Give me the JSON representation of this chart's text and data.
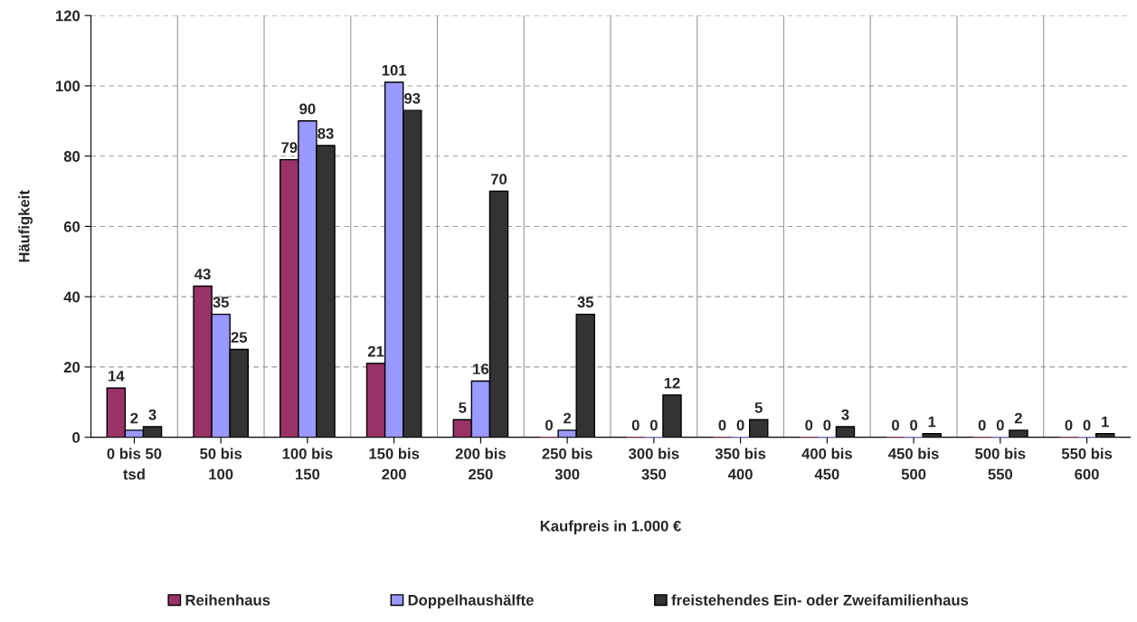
{
  "chart_data": {
    "type": "bar",
    "categories": [
      "0 bis 50\ntsd",
      "50 bis\n100",
      "100 bis\n150",
      "150 bis\n200",
      "200 bis\n250",
      "250 bis\n300",
      "300 bis\n350",
      "350 bis\n400",
      "400 bis\n450",
      "450 bis\n500",
      "500 bis\n550",
      "550 bis\n600"
    ],
    "series": [
      {
        "name": "Reihenhaus",
        "color": "#993366",
        "values": [
          14,
          43,
          79,
          21,
          5,
          0,
          0,
          0,
          0,
          0,
          0,
          0
        ]
      },
      {
        "name": "Doppelhaushälfte",
        "color": "#9999ff",
        "values": [
          2,
          35,
          90,
          101,
          16,
          2,
          0,
          0,
          0,
          0,
          0,
          0
        ]
      },
      {
        "name": "freistehendes Ein- oder Zweifamilienhaus",
        "color": "#333333",
        "values": [
          3,
          25,
          83,
          93,
          70,
          35,
          12,
          5,
          3,
          1,
          2,
          1
        ]
      }
    ],
    "xlabel": "Kaufpreis in 1.000 €",
    "ylabel": "Häufigkeit",
    "ylim": [
      0,
      120
    ],
    "yticks": [
      0,
      20,
      40,
      60,
      80,
      100,
      120
    ],
    "grid": true,
    "legend": "bottom",
    "data_labels": true
  }
}
